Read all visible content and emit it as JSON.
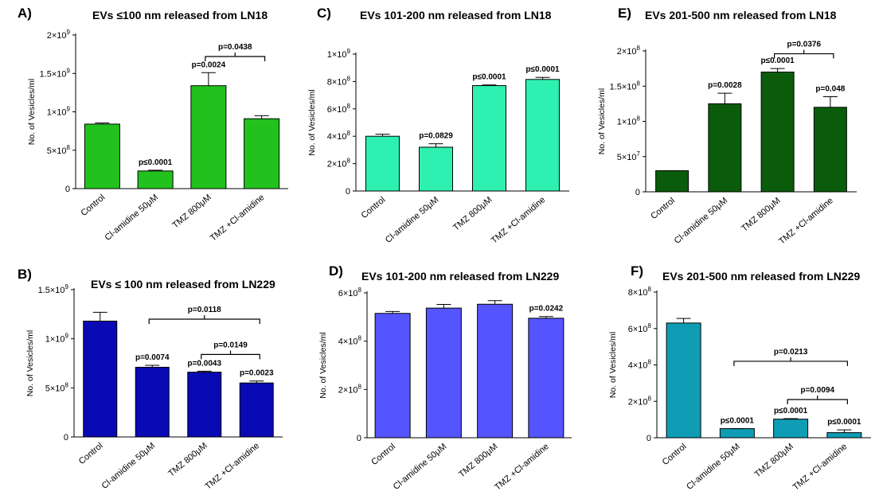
{
  "chart_data": [
    {
      "id": "A",
      "type": "bar",
      "panel_label": "A)",
      "title": "EVs ≤100 nm released from LN18",
      "ylabel": "No. of Vesicles/ml",
      "categories": [
        "Control",
        "Cl-amidine 50μM",
        "TMZ 800μM",
        "TMZ +Cl-amidine"
      ],
      "values": [
        840000000,
        230000000,
        1340000000,
        910000000
      ],
      "errors": [
        15000000,
        10000000,
        170000000,
        40000000
      ],
      "ylim": [
        0,
        2000000000
      ],
      "yticks": [
        0,
        500000000,
        1000000000,
        1500000000,
        2000000000
      ],
      "ytick_labels": [
        "0",
        "5×10",
        "1×10",
        "1.5×10",
        "2×10"
      ],
      "ytick_exponents": [
        "",
        "8",
        "9",
        "9",
        "9"
      ],
      "color": "#22c21e",
      "bar_labels": [
        "",
        "p≤0.0001",
        "p=0.0024",
        ""
      ],
      "brackets": [
        {
          "from": 2,
          "to": 3,
          "y": 1720000000,
          "label": "p=0.0438"
        }
      ]
    },
    {
      "id": "C",
      "type": "bar",
      "panel_label": "C)",
      "title": "EVs 101-200 nm released from LN18",
      "ylabel": "No. of Vesicles/ml",
      "categories": [
        "Control",
        "Cl-amidine 50μM",
        "TMZ 800μM",
        "TMZ +Cl-amidine"
      ],
      "values": [
        400000000,
        320000000,
        770000000,
        815000000
      ],
      "errors": [
        15000000,
        25000000,
        5000000,
        15000000
      ],
      "ylim": [
        0,
        1000000000
      ],
      "yticks": [
        0,
        200000000,
        400000000,
        600000000,
        800000000,
        1000000000
      ],
      "ytick_labels": [
        "0",
        "2×10",
        "4×10",
        "6×10",
        "8×10",
        "1×10"
      ],
      "ytick_exponents": [
        "",
        "8",
        "8",
        "8",
        "8",
        "9"
      ],
      "color": "#2ef0b0",
      "bar_labels": [
        "",
        "p=0.0829",
        "p≤0.0001",
        "p≤0.0001"
      ],
      "brackets": []
    },
    {
      "id": "E",
      "type": "bar",
      "panel_label": "E)",
      "title": "EVs 201-500 nm released from LN18",
      "ylabel": "No. of Vesicles/ml",
      "categories": [
        "Control",
        "Cl-amidine 50μM",
        "TMZ 800μM",
        "TMZ +Cl-amidine"
      ],
      "values": [
        30000000,
        125000000,
        170000000,
        120000000
      ],
      "errors": [
        0,
        15000000,
        5000000,
        15000000
      ],
      "ylim": [
        0,
        200000000
      ],
      "yticks": [
        0,
        50000000,
        100000000,
        150000000,
        200000000
      ],
      "ytick_labels": [
        "0",
        "5×10",
        "1×10",
        "1.5×10",
        "2×10"
      ],
      "ytick_exponents": [
        "",
        "7",
        "8",
        "8",
        "8"
      ],
      "color": "#0a5c0a",
      "bar_labels": [
        "",
        "p=0.0028",
        "p≤0.0001",
        "p=0.048"
      ],
      "brackets": [
        {
          "from": 2,
          "to": 3,
          "y": 196000000,
          "label": "p=0.0376"
        }
      ]
    },
    {
      "id": "B",
      "type": "bar",
      "panel_label": "B)",
      "title": "EVs ≤ 100 nm released from LN229",
      "ylabel": "No. of Vesicles/ml",
      "categories": [
        "Control",
        "Cl-amidine 50μM",
        "TMZ 800μM",
        "TMZ +Cl-amidine"
      ],
      "values": [
        1180000000,
        710000000,
        660000000,
        550000000
      ],
      "errors": [
        90000000,
        20000000,
        10000000,
        20000000
      ],
      "ylim": [
        0,
        1500000000
      ],
      "yticks": [
        0,
        500000000,
        1000000000,
        1500000000
      ],
      "ytick_labels": [
        "0",
        "5×10",
        "1×10",
        "1.5×10"
      ],
      "ytick_exponents": [
        "",
        "8",
        "9",
        "9"
      ],
      "color": "#0a0ab4",
      "bar_labels": [
        "",
        "p=0.0074",
        "p=0.0043",
        "p=0.0023"
      ],
      "brackets": [
        {
          "from": 1,
          "to": 3,
          "y": 1200000000,
          "label": "p=0.0118"
        },
        {
          "from": 2,
          "to": 3,
          "y": 840000000,
          "label": "p=0.0149"
        }
      ]
    },
    {
      "id": "D",
      "type": "bar",
      "panel_label": "D)",
      "title": "EVs 101-200 nm released from LN229",
      "ylabel": "No. of Vesicles/ml",
      "categories": [
        "Control",
        "Cl-amidine 50μM",
        "TMZ 800μM",
        "TMZ +Cl-amidine"
      ],
      "values": [
        515000000,
        537000000,
        553000000,
        495000000
      ],
      "errors": [
        8000000,
        15000000,
        15000000,
        7000000
      ],
      "ylim": [
        0,
        600000000
      ],
      "yticks": [
        0,
        200000000,
        400000000,
        600000000
      ],
      "ytick_labels": [
        "0",
        "2×10",
        "4×10",
        "6×10"
      ],
      "ytick_exponents": [
        "",
        "8",
        "8",
        "8"
      ],
      "color": "#5555ff",
      "bar_labels": [
        "",
        "",
        "",
        "p=0.0242"
      ],
      "brackets": []
    },
    {
      "id": "F",
      "type": "bar",
      "panel_label": "F)",
      "title": "EVs 201-500 nm released from LN229",
      "ylabel": "No. of Vesicles/ml",
      "categories": [
        "Control",
        "Cl-amidine 50μM",
        "TMZ 800μM",
        "TMZ +Cl-amidine"
      ],
      "values": [
        630000000,
        50000000,
        102000000,
        28000000
      ],
      "errors": [
        25000000,
        0,
        3000000,
        15000000
      ],
      "ylim": [
        0,
        800000000
      ],
      "yticks": [
        0,
        200000000,
        400000000,
        600000000,
        800000000
      ],
      "ytick_labels": [
        "0",
        "2×10",
        "4×10",
        "6×10",
        "8×10"
      ],
      "ytick_exponents": [
        "",
        "8",
        "8",
        "8",
        "8"
      ],
      "color": "#0f9db5",
      "bar_labels": [
        "",
        "p≤0.0001",
        "p≤0.0001",
        "p≤0.0001"
      ],
      "brackets": [
        {
          "from": 1,
          "to": 3,
          "y": 420000000,
          "label": "p=0.0213"
        },
        {
          "from": 2,
          "to": 3,
          "y": 210000000,
          "label": "p=0.0094"
        }
      ]
    }
  ]
}
